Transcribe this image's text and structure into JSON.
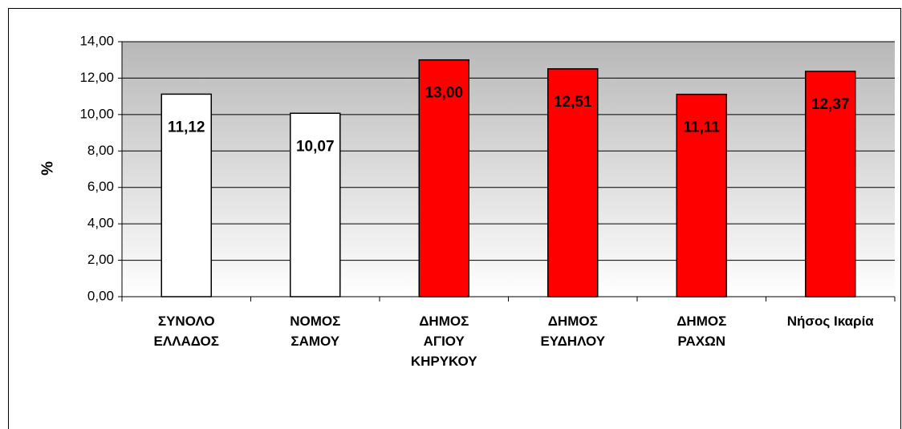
{
  "chart_data": {
    "type": "bar",
    "y_axis_label": "%",
    "categories": [
      "ΣΥΝΟΛΟ\nΕΛΛΑΔΟΣ",
      "ΝΟΜΟΣ\nΣΑΜΟΥ",
      "ΔΗΜΟΣ\nΑΓΙΟΥ\nΚΗΡΥΚΟΥ",
      "ΔΗΜΟΣ\nΕΥΔΗΛΟΥ",
      "ΔΗΜΟΣ\nΡΑΧΩΝ",
      "Νήσος Ικαρία"
    ],
    "values": [
      11.12,
      10.07,
      13.0,
      12.51,
      11.11,
      12.37
    ],
    "value_labels": [
      "11,12",
      "10,07",
      "13,00",
      "12,51",
      "11,11",
      "12,37"
    ],
    "colors": [
      "#ffffff",
      "#ffffff",
      "#ff0000",
      "#ff0000",
      "#ff0000",
      "#ff0000"
    ],
    "ylim": [
      0,
      14
    ],
    "yticks": [
      {
        "value": 0,
        "label": "0,00"
      },
      {
        "value": 2,
        "label": "2,00"
      },
      {
        "value": 4,
        "label": "4,00"
      },
      {
        "value": 6,
        "label": "6,00"
      },
      {
        "value": 8,
        "label": "8,00"
      },
      {
        "value": 10,
        "label": "10,00"
      },
      {
        "value": 12,
        "label": "12,00"
      },
      {
        "value": 14,
        "label": "14,00"
      }
    ],
    "grid": true
  }
}
